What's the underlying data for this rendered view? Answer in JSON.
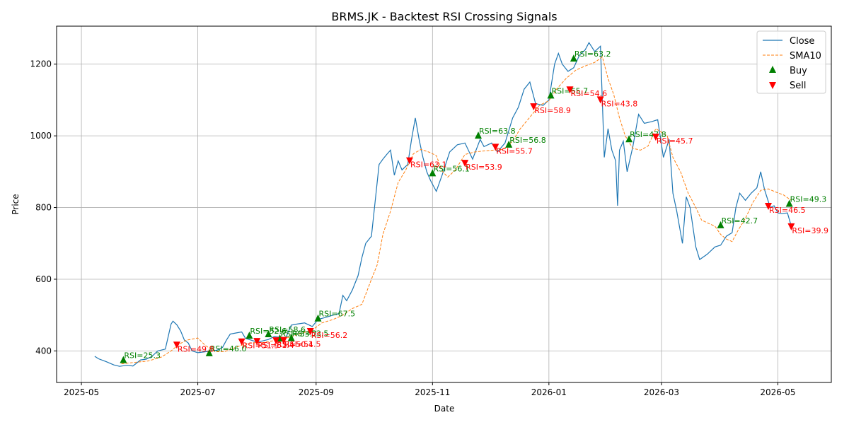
{
  "chart_data": {
    "type": "line",
    "title": "BRMS.JK - Backtest RSI Crossing Signals",
    "xlabel": "Date",
    "ylabel": "Price",
    "grid": true,
    "legend_position": "top-right",
    "xlim": [
      "2025-04-18",
      "2026-05-29"
    ],
    "ylim": [
      312,
      1306
    ],
    "x_ticks": [
      "2025-05-01",
      "2025-07-01",
      "2025-09-01",
      "2025-11-01",
      "2026-01-01",
      "2026-03-01",
      "2026-05-01"
    ],
    "x_tick_labels": [
      "2025-05",
      "2025-07",
      "2025-09",
      "2025-11",
      "2026-01",
      "2026-03",
      "2026-05"
    ],
    "y_ticks": [
      400,
      600,
      800,
      1000,
      1200
    ],
    "colors": {
      "close": "#1f77b4",
      "sma": "#ff7f0e",
      "buy": "#008000",
      "sell": "#ff0000"
    },
    "series": [
      {
        "name": "Close",
        "style": "solid",
        "points": [
          [
            "2025-05-08",
            385
          ],
          [
            "2025-05-10",
            378
          ],
          [
            "2025-05-14",
            370
          ],
          [
            "2025-05-18",
            361
          ],
          [
            "2025-05-21",
            357
          ],
          [
            "2025-05-25",
            360
          ],
          [
            "2025-05-28",
            358
          ],
          [
            "2025-06-01",
            375
          ],
          [
            "2025-06-04",
            377
          ],
          [
            "2025-06-07",
            385
          ],
          [
            "2025-06-10",
            400
          ],
          [
            "2025-06-14",
            405
          ],
          [
            "2025-06-17",
            475
          ],
          [
            "2025-06-18",
            483
          ],
          [
            "2025-06-20",
            473
          ],
          [
            "2025-06-22",
            456
          ],
          [
            "2025-06-24",
            430
          ],
          [
            "2025-06-26",
            422
          ],
          [
            "2025-06-28",
            400
          ],
          [
            "2025-07-01",
            395
          ],
          [
            "2025-07-04",
            397
          ],
          [
            "2025-07-08",
            400
          ],
          [
            "2025-07-11",
            402
          ],
          [
            "2025-07-14",
            410
          ],
          [
            "2025-07-16",
            430
          ],
          [
            "2025-07-18",
            447
          ],
          [
            "2025-07-21",
            450
          ],
          [
            "2025-07-24",
            453
          ],
          [
            "2025-07-26",
            435
          ],
          [
            "2025-07-29",
            430
          ],
          [
            "2025-08-01",
            425
          ],
          [
            "2025-08-04",
            428
          ],
          [
            "2025-08-07",
            432
          ],
          [
            "2025-08-10",
            440
          ],
          [
            "2025-08-13",
            438
          ],
          [
            "2025-08-16",
            435
          ],
          [
            "2025-08-19",
            472
          ],
          [
            "2025-08-22",
            475
          ],
          [
            "2025-08-26",
            478
          ],
          [
            "2025-08-30",
            468
          ],
          [
            "2025-09-02",
            488
          ],
          [
            "2025-09-05",
            492
          ],
          [
            "2025-09-10",
            500
          ],
          [
            "2025-09-13",
            504
          ],
          [
            "2025-09-15",
            555
          ],
          [
            "2025-09-17",
            540
          ],
          [
            "2025-09-20",
            570
          ],
          [
            "2025-09-23",
            610
          ],
          [
            "2025-09-25",
            660
          ],
          [
            "2025-09-27",
            700
          ],
          [
            "2025-09-30",
            720
          ],
          [
            "2025-10-02",
            820
          ],
          [
            "2025-10-04",
            920
          ],
          [
            "2025-10-06",
            935
          ],
          [
            "2025-10-08",
            948
          ],
          [
            "2025-10-10",
            960
          ],
          [
            "2025-10-12",
            890
          ],
          [
            "2025-10-14",
            930
          ],
          [
            "2025-10-16",
            905
          ],
          [
            "2025-10-19",
            920
          ],
          [
            "2025-10-21",
            990
          ],
          [
            "2025-10-23",
            1050
          ],
          [
            "2025-10-25",
            990
          ],
          [
            "2025-10-27",
            940
          ],
          [
            "2025-10-29",
            900
          ],
          [
            "2025-10-31",
            875
          ],
          [
            "2025-11-03",
            845
          ],
          [
            "2025-11-06",
            890
          ],
          [
            "2025-11-10",
            955
          ],
          [
            "2025-11-14",
            975
          ],
          [
            "2025-11-18",
            980
          ],
          [
            "2025-11-22",
            935
          ],
          [
            "2025-11-26",
            990
          ],
          [
            "2025-11-28",
            970
          ],
          [
            "2025-12-02",
            980
          ],
          [
            "2025-12-05",
            955
          ],
          [
            "2025-12-09",
            980
          ],
          [
            "2025-12-13",
            1050
          ],
          [
            "2025-12-16",
            1080
          ],
          [
            "2025-12-19",
            1130
          ],
          [
            "2025-12-22",
            1150
          ],
          [
            "2025-12-25",
            1090
          ],
          [
            "2025-12-29",
            1085
          ],
          [
            "2026-01-01",
            1100
          ],
          [
            "2026-01-04",
            1200
          ],
          [
            "2026-01-06",
            1230
          ],
          [
            "2026-01-08",
            1200
          ],
          [
            "2026-01-11",
            1180
          ],
          [
            "2026-01-14",
            1190
          ],
          [
            "2026-01-17",
            1225
          ],
          [
            "2026-01-20",
            1240
          ],
          [
            "2026-01-22",
            1260
          ],
          [
            "2026-01-25",
            1235
          ],
          [
            "2026-01-28",
            1250
          ],
          [
            "2026-01-30",
            940
          ],
          [
            "2026-02-01",
            1020
          ],
          [
            "2026-02-03",
            960
          ],
          [
            "2026-02-05",
            930
          ],
          [
            "2026-02-06",
            805
          ],
          [
            "2026-02-07",
            960
          ],
          [
            "2026-02-09",
            985
          ],
          [
            "2026-02-11",
            900
          ],
          [
            "2026-02-14",
            970
          ],
          [
            "2026-02-17",
            1060
          ],
          [
            "2026-02-20",
            1035
          ],
          [
            "2026-02-24",
            1040
          ],
          [
            "2026-02-27",
            1045
          ],
          [
            "2026-03-02",
            940
          ],
          [
            "2026-03-05",
            990
          ],
          [
            "2026-03-07",
            840
          ],
          [
            "2026-03-09",
            790
          ],
          [
            "2026-03-12",
            700
          ],
          [
            "2026-03-14",
            830
          ],
          [
            "2026-03-16",
            800
          ],
          [
            "2026-03-19",
            690
          ],
          [
            "2026-03-21",
            655
          ],
          [
            "2026-03-25",
            670
          ],
          [
            "2026-03-29",
            690
          ],
          [
            "2026-04-01",
            695
          ],
          [
            "2026-04-04",
            720
          ],
          [
            "2026-04-07",
            730
          ],
          [
            "2026-04-09",
            800
          ],
          [
            "2026-04-11",
            840
          ],
          [
            "2026-04-14",
            820
          ],
          [
            "2026-04-17",
            840
          ],
          [
            "2026-04-20",
            855
          ],
          [
            "2026-04-22",
            900
          ],
          [
            "2026-04-24",
            850
          ],
          [
            "2026-04-27",
            800
          ],
          [
            "2026-04-29",
            805
          ],
          [
            "2026-05-01",
            785
          ],
          [
            "2026-05-03",
            783
          ],
          [
            "2026-05-06",
            785
          ],
          [
            "2026-05-08",
            748
          ]
        ]
      },
      {
        "name": "SMA10",
        "style": "dashed",
        "points": [
          [
            "2025-05-22",
            364
          ],
          [
            "2025-05-29",
            368
          ],
          [
            "2025-06-05",
            372
          ],
          [
            "2025-06-12",
            383
          ],
          [
            "2025-06-17",
            400
          ],
          [
            "2025-06-21",
            418
          ],
          [
            "2025-06-25",
            430
          ],
          [
            "2025-07-01",
            436
          ],
          [
            "2025-07-05",
            415
          ],
          [
            "2025-07-10",
            398
          ],
          [
            "2025-07-15",
            398
          ],
          [
            "2025-07-20",
            408
          ],
          [
            "2025-07-25",
            418
          ],
          [
            "2025-07-30",
            423
          ],
          [
            "2025-08-04",
            423
          ],
          [
            "2025-08-09",
            428
          ],
          [
            "2025-08-14",
            432
          ],
          [
            "2025-08-19",
            440
          ],
          [
            "2025-08-25",
            450
          ],
          [
            "2025-08-31",
            462
          ],
          [
            "2025-09-04",
            478
          ],
          [
            "2025-09-10",
            488
          ],
          [
            "2025-09-15",
            500
          ],
          [
            "2025-09-20",
            518
          ],
          [
            "2025-09-25",
            530
          ],
          [
            "2025-09-30",
            600
          ],
          [
            "2025-10-03",
            640
          ],
          [
            "2025-10-06",
            725
          ],
          [
            "2025-10-10",
            790
          ],
          [
            "2025-10-14",
            870
          ],
          [
            "2025-10-18",
            905
          ],
          [
            "2025-10-22",
            950
          ],
          [
            "2025-10-26",
            962
          ],
          [
            "2025-10-30",
            955
          ],
          [
            "2025-11-03",
            945
          ],
          [
            "2025-11-06",
            902
          ],
          [
            "2025-11-09",
            885
          ],
          [
            "2025-11-13",
            905
          ],
          [
            "2025-11-18",
            948
          ],
          [
            "2025-11-23",
            955
          ],
          [
            "2025-11-28",
            958
          ],
          [
            "2025-12-03",
            960
          ],
          [
            "2025-12-08",
            962
          ],
          [
            "2025-12-13",
            985
          ],
          [
            "2025-12-17",
            1020
          ],
          [
            "2025-12-22",
            1052
          ],
          [
            "2025-12-27",
            1085
          ],
          [
            "2026-01-01",
            1098
          ],
          [
            "2026-01-05",
            1130
          ],
          [
            "2026-01-10",
            1160
          ],
          [
            "2026-01-15",
            1183
          ],
          [
            "2026-01-20",
            1195
          ],
          [
            "2026-01-25",
            1205
          ],
          [
            "2026-01-29",
            1220
          ],
          [
            "2026-02-01",
            1160
          ],
          [
            "2026-02-04",
            1115
          ],
          [
            "2026-02-07",
            1050
          ],
          [
            "2026-02-10",
            1000
          ],
          [
            "2026-02-14",
            965
          ],
          [
            "2026-02-18",
            960
          ],
          [
            "2026-02-22",
            972
          ],
          [
            "2026-02-26",
            1020
          ],
          [
            "2026-03-01",
            1010
          ],
          [
            "2026-03-04",
            1000
          ],
          [
            "2026-03-07",
            940
          ],
          [
            "2026-03-11",
            900
          ],
          [
            "2026-03-15",
            840
          ],
          [
            "2026-03-19",
            800
          ],
          [
            "2026-03-22",
            765
          ],
          [
            "2026-03-26",
            755
          ],
          [
            "2026-03-29",
            748
          ],
          [
            "2026-04-01",
            725
          ],
          [
            "2026-04-04",
            712
          ],
          [
            "2026-04-07",
            705
          ],
          [
            "2026-04-10",
            735
          ],
          [
            "2026-04-14",
            770
          ],
          [
            "2026-04-18",
            815
          ],
          [
            "2026-04-22",
            848
          ],
          [
            "2026-04-26",
            852
          ],
          [
            "2026-04-30",
            843
          ],
          [
            "2026-05-04",
            835
          ],
          [
            "2026-05-08",
            820
          ]
        ]
      }
    ],
    "buy_signals": [
      {
        "date": "2025-05-23",
        "price": 374,
        "label": "RSI=25.3"
      },
      {
        "date": "2025-07-07",
        "price": 393,
        "label": "RSI=46.0"
      },
      {
        "date": "2025-07-28",
        "price": 442,
        "label": "RSI=52.6"
      },
      {
        "date": "2025-08-07",
        "price": 446,
        "label": "RSI=58.6"
      },
      {
        "date": "2025-08-13",
        "price": 434,
        "label": "RSI=53.7"
      },
      {
        "date": "2025-08-19",
        "price": 435,
        "label": "RSI=53.5"
      },
      {
        "date": "2025-09-02",
        "price": 490,
        "label": "RSI=67.5"
      },
      {
        "date": "2025-11-01",
        "price": 895,
        "label": "RSI=56.1"
      },
      {
        "date": "2025-11-25",
        "price": 1000,
        "label": "RSI=63.8"
      },
      {
        "date": "2025-12-11",
        "price": 975,
        "label": "RSI=56.8"
      },
      {
        "date": "2026-01-02",
        "price": 1112,
        "label": "RSI=65.7"
      },
      {
        "date": "2026-01-14",
        "price": 1215,
        "label": "RSI=63.2"
      },
      {
        "date": "2026-02-12",
        "price": 990,
        "label": "RSI=47.8"
      },
      {
        "date": "2026-04-01",
        "price": 750,
        "label": "RSI=42.7"
      },
      {
        "date": "2026-05-07",
        "price": 810,
        "label": "RSI=49.3"
      }
    ],
    "sell_signals": [
      {
        "date": "2025-06-20",
        "price": 418,
        "label": "RSI=49.8"
      },
      {
        "date": "2025-07-24",
        "price": 427,
        "label": "RSI=51.9"
      },
      {
        "date": "2025-08-01",
        "price": 428,
        "label": "RSI=51.4"
      },
      {
        "date": "2025-08-11",
        "price": 430,
        "label": "RSI=50.4"
      },
      {
        "date": "2025-08-15",
        "price": 431,
        "label": "RSI=51.5"
      },
      {
        "date": "2025-08-29",
        "price": 456,
        "label": "RSI=56.2"
      },
      {
        "date": "2025-10-20",
        "price": 932,
        "label": "RSI=63.1"
      },
      {
        "date": "2025-11-18",
        "price": 925,
        "label": "RSI=53.9"
      },
      {
        "date": "2025-12-04",
        "price": 970,
        "label": "RSI=55.7"
      },
      {
        "date": "2025-12-24",
        "price": 1083,
        "label": "RSI=58.9"
      },
      {
        "date": "2026-01-12",
        "price": 1130,
        "label": "RSI=54.6"
      },
      {
        "date": "2026-01-28",
        "price": 1102,
        "label": "RSI=43.8"
      },
      {
        "date": "2026-02-26",
        "price": 998,
        "label": "RSI=45.7"
      },
      {
        "date": "2026-04-26",
        "price": 805,
        "label": "RSI=46.5"
      },
      {
        "date": "2026-05-08",
        "price": 748,
        "label": "RSI=39.9"
      }
    ],
    "legend": [
      {
        "key": "close",
        "label": "Close"
      },
      {
        "key": "sma",
        "label": "SMA10"
      },
      {
        "key": "buy",
        "label": "Buy"
      },
      {
        "key": "sell",
        "label": "Sell"
      }
    ]
  }
}
